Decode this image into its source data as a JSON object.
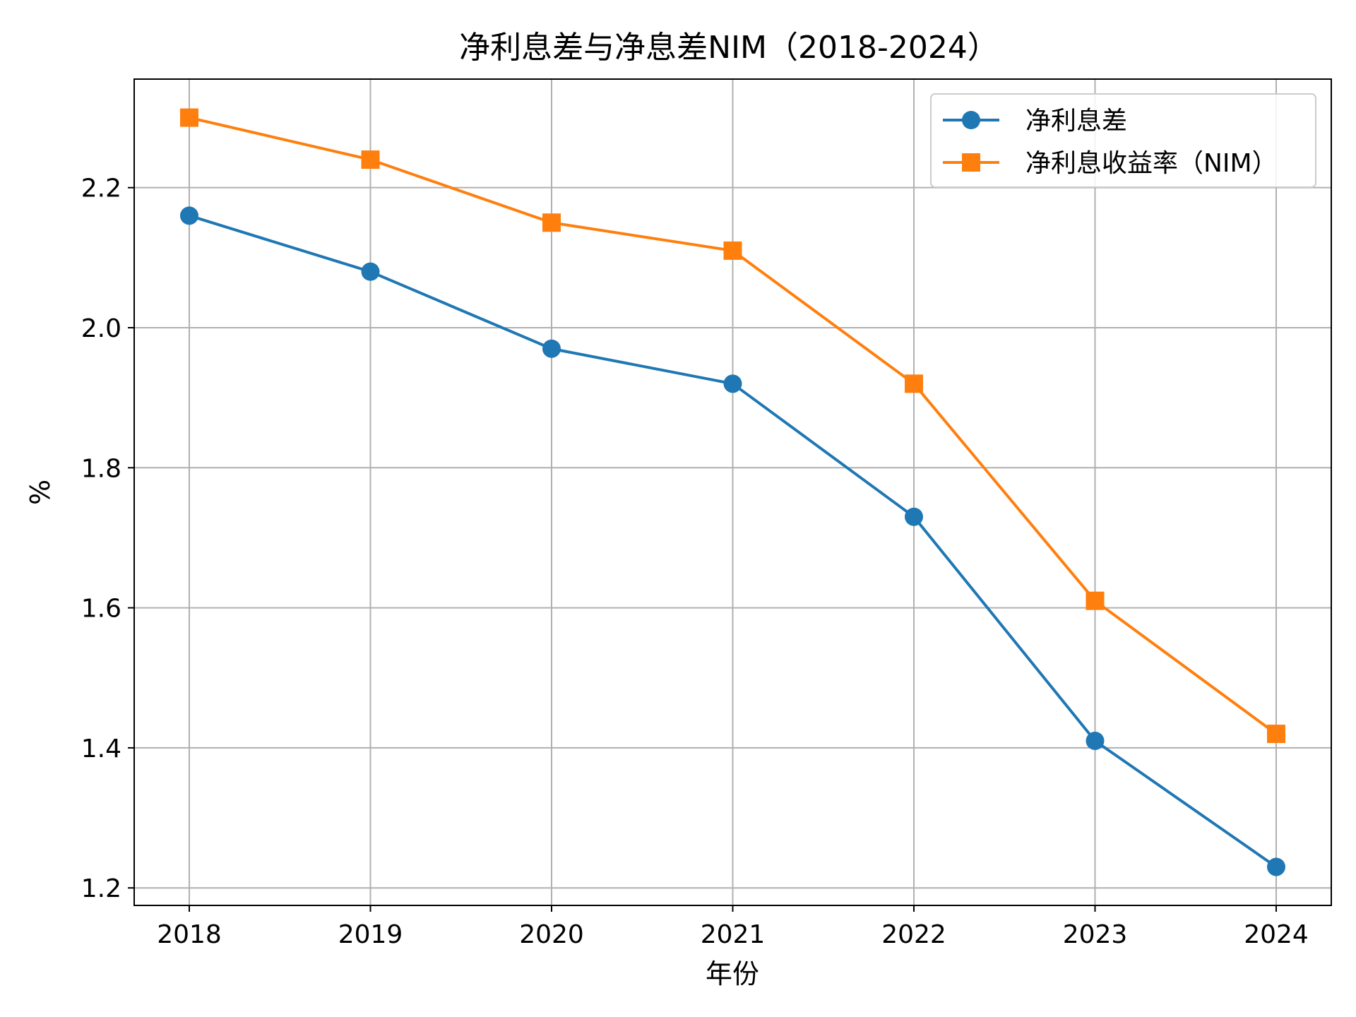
{
  "chart_data": {
    "type": "line",
    "title": "净利息差与净息差NIM（2018-2024）",
    "xlabel": "年份",
    "ylabel": "%",
    "categories": [
      "2018",
      "2019",
      "2020",
      "2021",
      "2022",
      "2023",
      "2024"
    ],
    "series": [
      {
        "name": "净利息差",
        "color": "#1f77b4",
        "marker": "circle",
        "values": [
          2.16,
          2.08,
          1.97,
          1.92,
          1.73,
          1.41,
          1.23
        ]
      },
      {
        "name": "净利息收益率（NIM）",
        "color": "#ff7f0e",
        "marker": "square",
        "values": [
          2.3,
          2.24,
          2.15,
          2.11,
          1.92,
          1.61,
          1.42
        ]
      }
    ],
    "yticks": [
      "1.2",
      "1.4",
      "1.6",
      "1.8",
      "2.0",
      "2.2"
    ],
    "ylim": [
      1.175,
      2.355
    ],
    "grid": true,
    "legend_position": "top-right"
  }
}
